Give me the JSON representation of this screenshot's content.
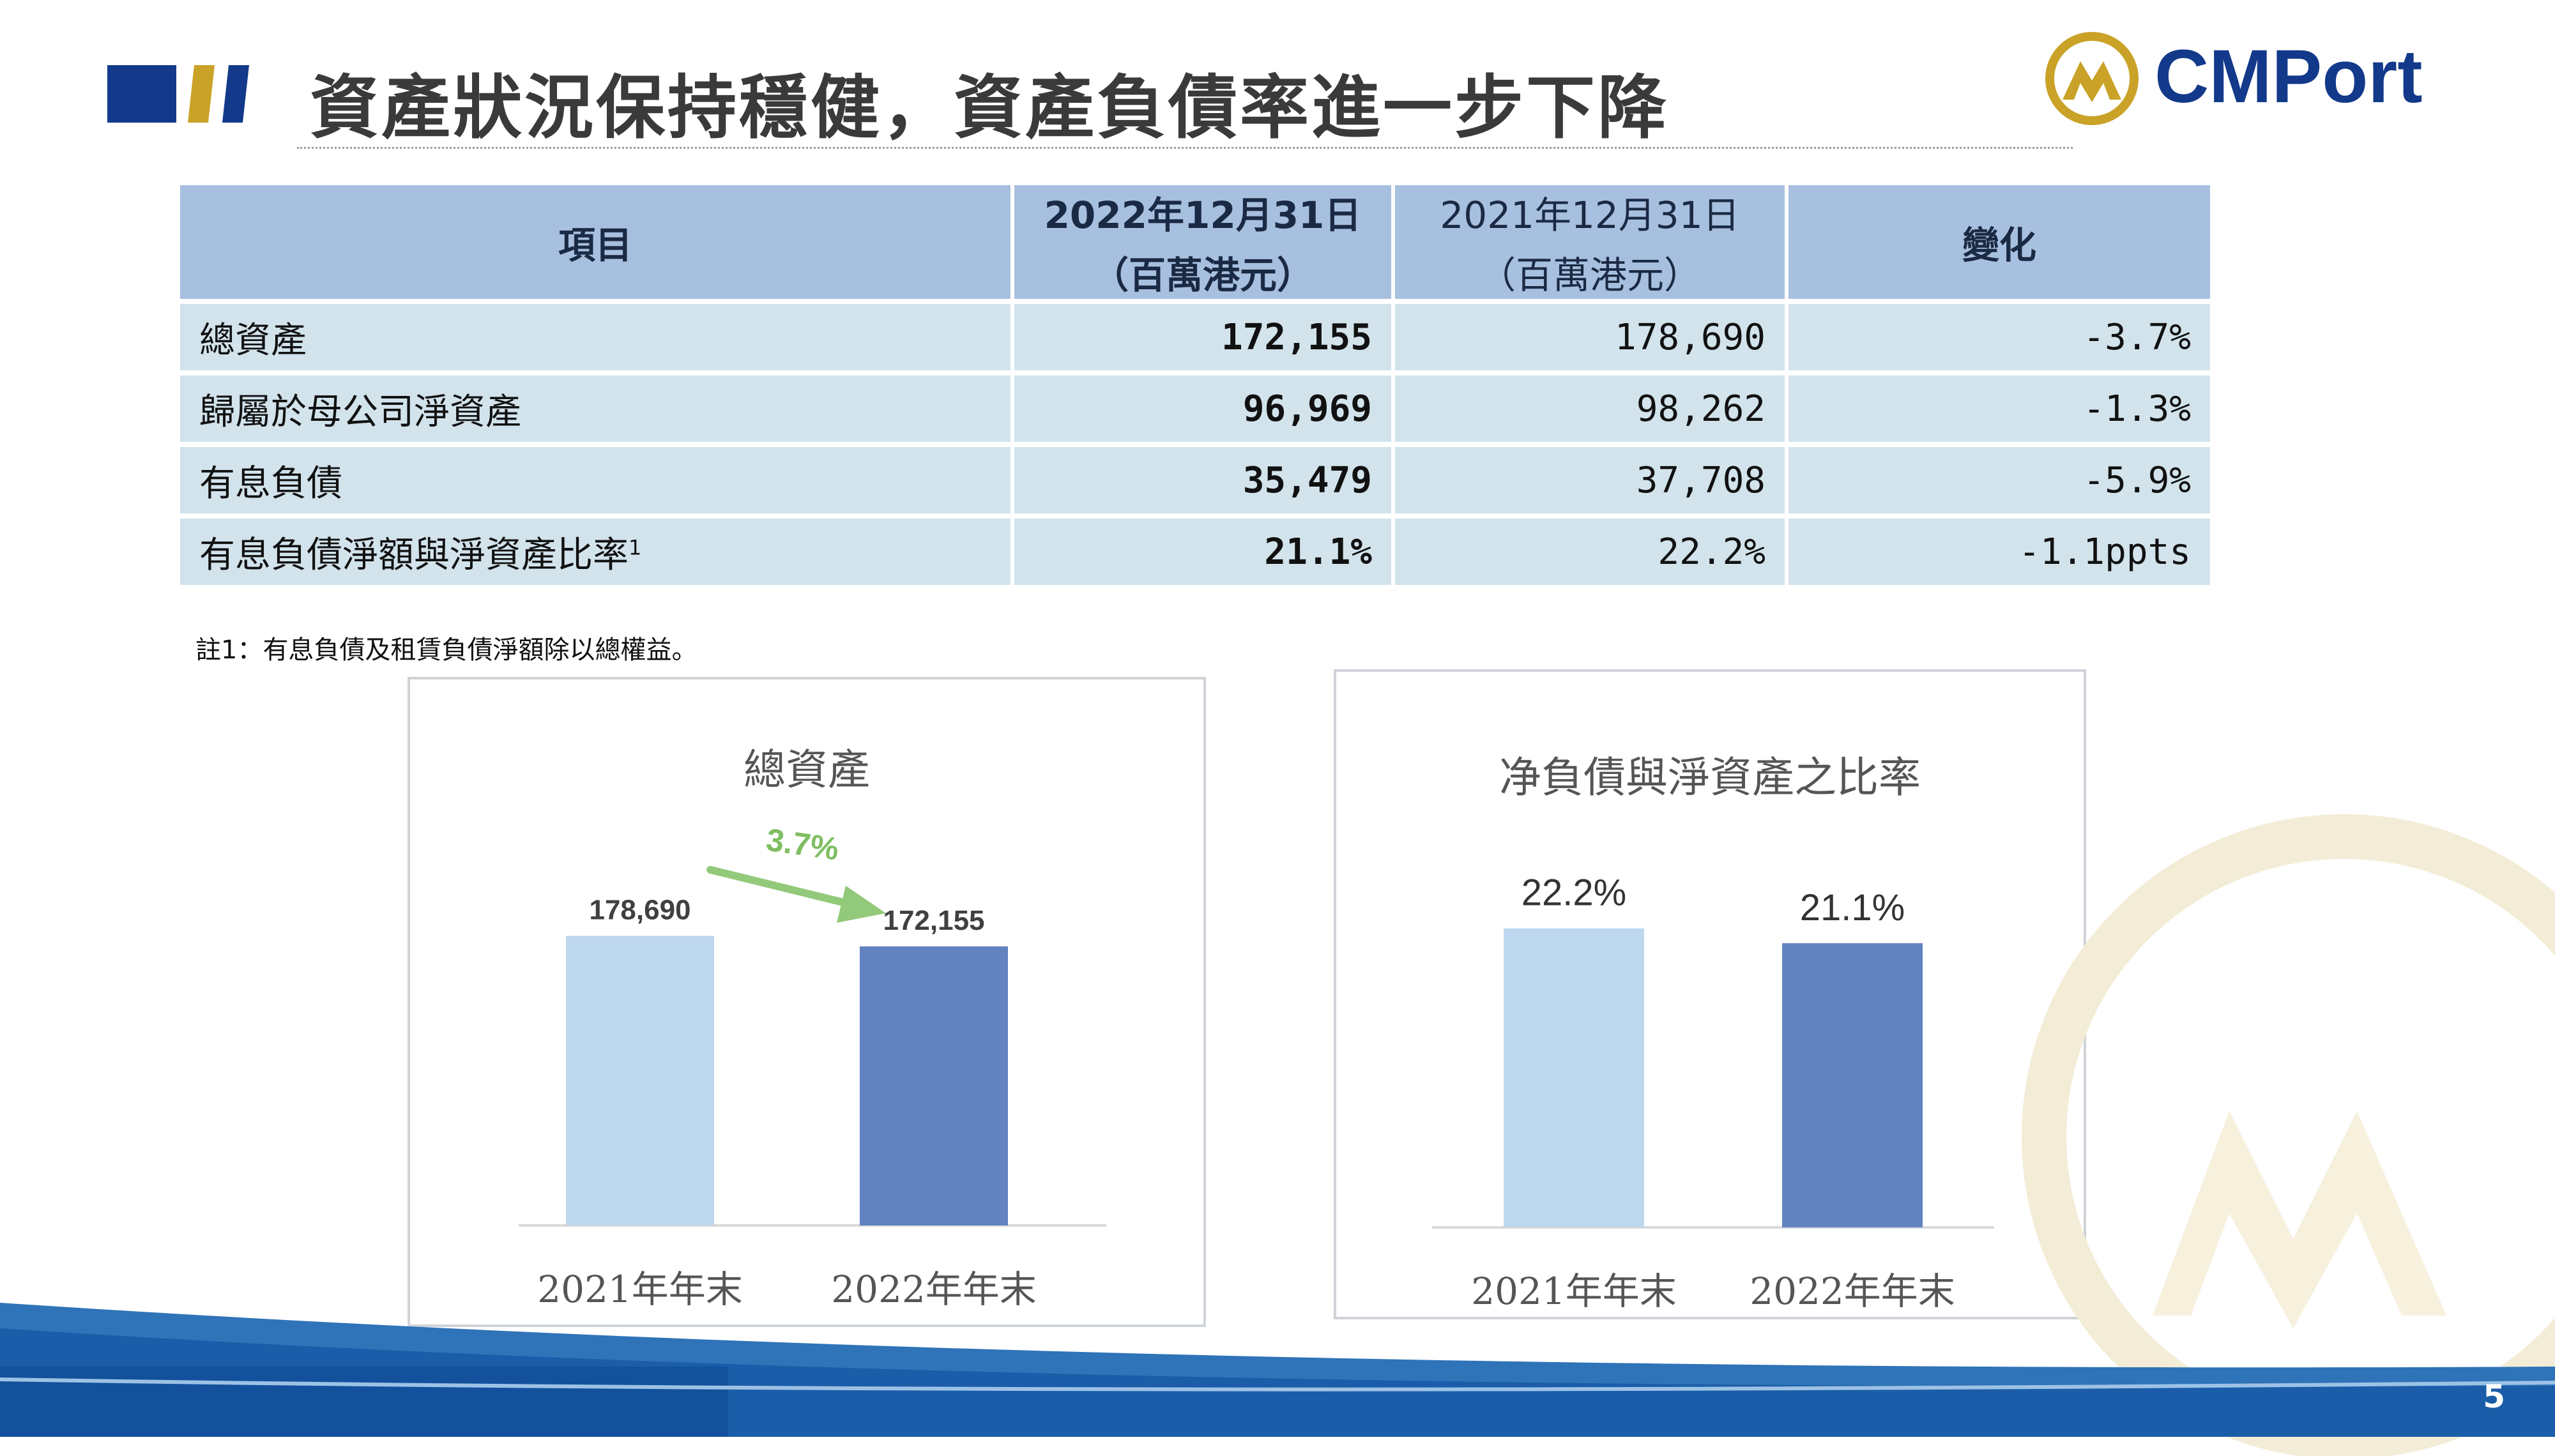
{
  "header": {
    "title": "資產狀況保持穩健，資產負債率進一步下降",
    "logo_text": "CMPort"
  },
  "table": {
    "headers": {
      "item": "項目",
      "y2022": "2022年12月31日",
      "y2022_unit": "（百萬港元）",
      "y2021": "2021年12月31日",
      "y2021_unit": "（百萬港元）",
      "change": "變化"
    },
    "rows": [
      {
        "item": "總資產",
        "sup": "",
        "y2022": "172,155",
        "y2021": "178,690",
        "change": "-3.7%"
      },
      {
        "item": "歸屬於母公司淨資產",
        "sup": "",
        "y2022": "96,969",
        "y2021": "98,262",
        "change": "-1.3%"
      },
      {
        "item": "有息負債",
        "sup": "",
        "y2022": "35,479",
        "y2021": "37,708",
        "change": "-5.9%"
      },
      {
        "item": "有息負債淨額與淨資產比率",
        "sup": "1",
        "y2022": "21.1%",
        "y2021": "22.2%",
        "change": "-1.1ppts"
      }
    ]
  },
  "footnote": "註1：有息負債及租賃負債淨額除以總權益。",
  "colors": {
    "bar_2021": "#bdd7ee",
    "bar_2022": "#6283bf",
    "arrow": "#92c97a",
    "header_bg": "#a8c0df",
    "row_bg": "#d2e3ec",
    "brand_navy": "#13398a",
    "brand_gold": "#c9a227"
  },
  "chart_data": [
    {
      "type": "bar",
      "title": "總資產",
      "categories": [
        "2021年年末",
        "2022年年末"
      ],
      "values": [
        178690,
        172155
      ],
      "value_labels": [
        "178,690",
        "172,155"
      ],
      "annotation": "3.7%",
      "ylim": [
        0,
        260000
      ]
    },
    {
      "type": "bar",
      "title": "净負債與淨資產之比率",
      "categories": [
        "2021年年末",
        "2022年年末"
      ],
      "values": [
        22.2,
        21.1
      ],
      "value_labels": [
        "22.2%",
        "21.1%"
      ],
      "ylim": [
        0,
        32
      ]
    }
  ],
  "footer": {
    "page_number": "5"
  }
}
